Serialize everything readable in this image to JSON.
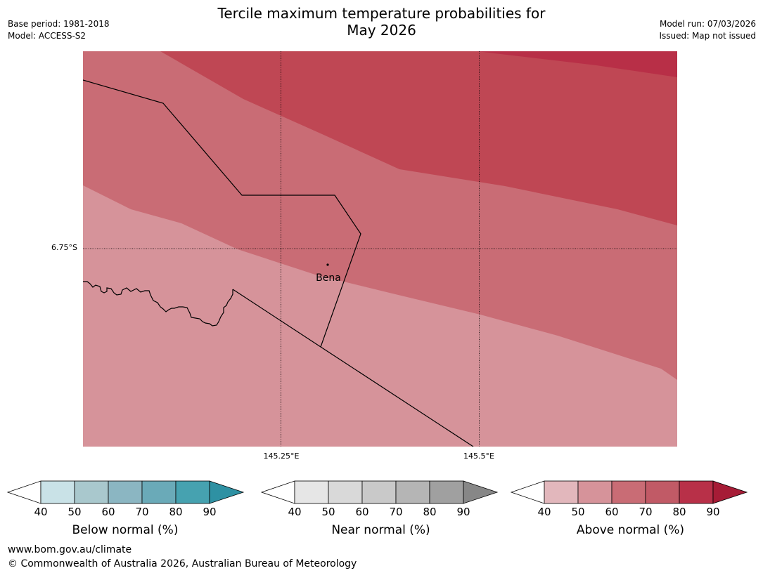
{
  "title": {
    "line1": "Tercile maximum temperature probabilities for",
    "line2": "May 2026"
  },
  "info_left": {
    "base_period": "Base period: 1981-2018",
    "model": "Model: ACCESS-S2"
  },
  "info_right": {
    "model_run": "Model run: 07/03/2026",
    "issued": "Issued: Map not issued"
  },
  "map": {
    "lat_label": "6.75°S",
    "lon_labels": [
      "145.25°E",
      "145.5°E"
    ],
    "town": "Bena",
    "fills": {
      "band_50_60": "#d6939a",
      "band_60_70": "#c96c75",
      "band_70_80": "#bf4754",
      "band_80_90": "#b82f47"
    }
  },
  "colorbars": [
    {
      "label": "Below normal (%)",
      "ticks": [
        "40",
        "50",
        "60",
        "70",
        "80",
        "90"
      ],
      "colors": [
        "#c9e2e7",
        "#a9c8cd",
        "#8bb6c2",
        "#6aaab8",
        "#46a2b0",
        "#2e91a3"
      ]
    },
    {
      "label": "Near normal (%)",
      "ticks": [
        "40",
        "50",
        "60",
        "70",
        "80",
        "90"
      ],
      "colors": [
        "#e6e6e6",
        "#d9d9d9",
        "#c9c9c9",
        "#b5b5b5",
        "#a0a0a0",
        "#878787"
      ]
    },
    {
      "label": "Above normal (%)",
      "ticks": [
        "40",
        "50",
        "60",
        "70",
        "80",
        "90"
      ],
      "colors": [
        "#e2b7bc",
        "#d6939a",
        "#c96c75",
        "#c15a66",
        "#b83048",
        "#a61c36"
      ]
    }
  ],
  "footer": {
    "url": "www.bom.gov.au/climate",
    "copyright": "© Commonwealth of Australia 2026, Australian Bureau of Meteorology"
  }
}
